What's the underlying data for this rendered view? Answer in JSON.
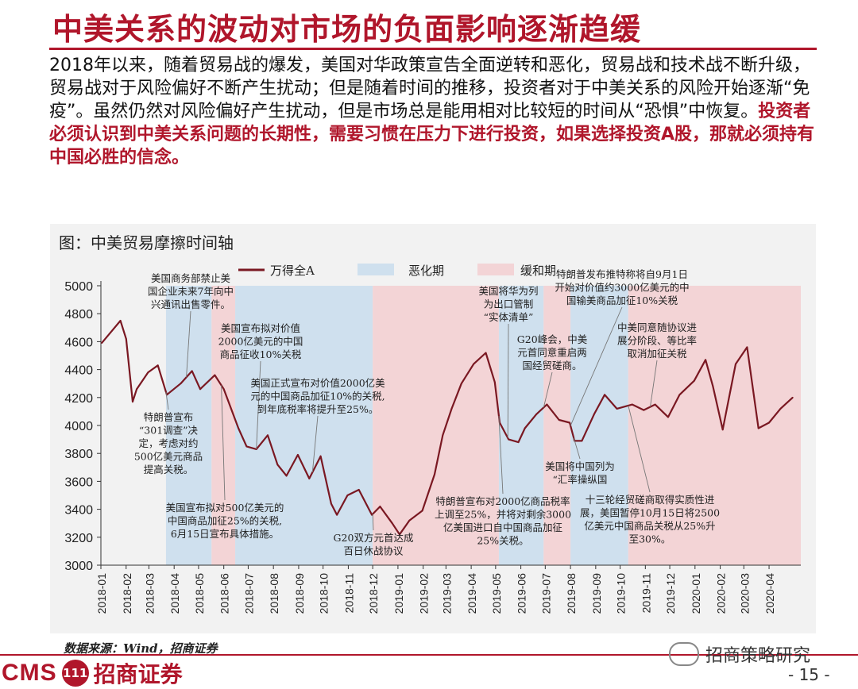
{
  "header": {
    "title": "中美关系的波动对市场的负面影响逐渐趋缓"
  },
  "body": {
    "lead": "2018年以来，随着贸易战的爆发，美国对华政策宣告全面逆转和恶化，贸易战和技术战不断升级，贸易战对于风险偏好不断产生扰动；但是随着时间的推移，投资者对于中美关系的风险开始逐渐“免疫”。虽然仍然对风险偏好产生扰动，但是市场总是能用相对比较短的时间从“恐惧”中恢复。",
    "highlight": "投资者必须认识到中美关系问题的长期性，需要习惯在压力下进行投资，如果选择投资A股，那就必须持有中国必胜的信念。"
  },
  "figure": {
    "title": "图：中美贸易摩擦时间轴"
  },
  "colors": {
    "line": "#7a1822",
    "worsen": "#cfe0ee",
    "ease": "#f3d4d6",
    "accent": "#b0162b"
  },
  "chart_data": {
    "type": "line",
    "title": "",
    "xlabel": "",
    "ylabel": "",
    "ylim": [
      3000,
      5000
    ],
    "yticks": [
      3000,
      3200,
      3400,
      3600,
      3800,
      4000,
      4200,
      4400,
      4600,
      4800,
      5000
    ],
    "xlim": [
      "2018-01-01",
      "2020-05-10"
    ],
    "categories": [
      "2018-01",
      "2018-02",
      "2018-03",
      "2018-04",
      "2018-05",
      "2018-06",
      "2018-07",
      "2018-08",
      "2018-09",
      "2018-10",
      "2018-11",
      "2018-12",
      "2019-01",
      "2019-02",
      "2019-03",
      "2019-04",
      "2019-05",
      "2019-06",
      "2019-07",
      "2019-08",
      "2019-09",
      "2019-10",
      "2019-11",
      "2019-12",
      "2020-01",
      "2020-02",
      "2020-03",
      "2020-04"
    ],
    "legend": {
      "placement": "top",
      "line": "万得全A",
      "worsen": "恶化期",
      "ease": "缓和期"
    },
    "series": [
      {
        "name": "万得全A",
        "x": [
          "2018-01-02",
          "2018-01-15",
          "2018-01-25",
          "2018-02-01",
          "2018-02-09",
          "2018-02-14",
          "2018-02-28",
          "2018-03-12",
          "2018-03-23",
          "2018-04-09",
          "2018-04-23",
          "2018-05-03",
          "2018-05-21",
          "2018-06-01",
          "2018-06-19",
          "2018-06-29",
          "2018-07-11",
          "2018-07-25",
          "2018-08-06",
          "2018-08-17",
          "2018-08-31",
          "2018-09-14",
          "2018-09-28",
          "2018-10-11",
          "2018-10-18",
          "2018-10-31",
          "2018-11-14",
          "2018-11-30",
          "2018-12-10",
          "2018-12-25",
          "2019-01-03",
          "2019-01-15",
          "2019-01-31",
          "2019-02-15",
          "2019-02-25",
          "2019-03-08",
          "2019-03-20",
          "2019-04-04",
          "2019-04-19",
          "2019-04-30",
          "2019-05-06",
          "2019-05-17",
          "2019-05-29",
          "2019-06-06",
          "2019-06-20",
          "2019-07-03",
          "2019-07-18",
          "2019-07-31",
          "2019-08-06",
          "2019-08-15",
          "2019-08-30",
          "2019-09-12",
          "2019-09-27",
          "2019-10-16",
          "2019-10-30",
          "2019-11-13",
          "2019-11-29",
          "2019-12-13",
          "2019-12-31",
          "2020-01-14",
          "2020-01-23",
          "2020-02-04",
          "2020-02-20",
          "2020-03-05",
          "2020-03-19",
          "2020-04-01",
          "2020-04-15",
          "2020-04-30"
        ],
        "values": [
          4590,
          4680,
          4750,
          4620,
          4170,
          4260,
          4380,
          4430,
          4220,
          4300,
          4390,
          4260,
          4360,
          4260,
          3980,
          3850,
          3830,
          3930,
          3720,
          3640,
          3790,
          3620,
          3780,
          3440,
          3360,
          3500,
          3540,
          3360,
          3420,
          3300,
          3220,
          3320,
          3390,
          3650,
          3930,
          4120,
          4300,
          4440,
          4520,
          4310,
          4020,
          3900,
          3880,
          3980,
          4080,
          4150,
          4040,
          4020,
          3890,
          3890,
          4080,
          4220,
          4120,
          4150,
          4110,
          4150,
          4060,
          4220,
          4320,
          4470,
          4280,
          3970,
          4440,
          4560,
          3980,
          4020,
          4120,
          4200
        ]
      }
    ],
    "worsen_periods": [
      [
        "2018-03-22",
        "2018-05-17"
      ],
      [
        "2018-06-15",
        "2018-12-01"
      ],
      [
        "2019-05-05",
        "2019-06-29"
      ],
      [
        "2019-08-01",
        "2019-10-11"
      ]
    ],
    "ease_periods": [
      [
        "2018-05-17",
        "2018-06-15"
      ],
      [
        "2018-12-01",
        "2019-05-05"
      ],
      [
        "2019-06-29",
        "2019-08-01"
      ],
      [
        "2019-10-11",
        "2020-05-10"
      ]
    ],
    "annotations": [
      {
        "text": [
          "美国商务部禁止美",
          "国企业未来7年向中",
          "兴通讯出售零件。"
        ],
        "date": "2018-04-16"
      },
      {
        "text": [
          "美国宣布拟对价值",
          "2000亿美元的中国",
          "商品征收10%关税"
        ],
        "date": "2018-07-11"
      },
      {
        "text": [
          "美国正式宣布对价值2000亿美",
          "元的中国商品加征10%的关税,",
          "到年底税率将提升至25%。"
        ],
        "date": "2018-09-18"
      },
      {
        "text": [
          "特朗普宣布",
          "“301调查”决",
          "定，考虑对约",
          "500亿美元商品",
          "提高关税。"
        ],
        "date": "2018-03-22"
      },
      {
        "text": [
          "美国宣布拟对500亿美元的",
          "中国商品加征25%的关税,",
          "6月15日宣布具体措施。"
        ],
        "date": "2018-05-29"
      },
      {
        "text": [
          "G20双方元首达成",
          "百日休战协议"
        ],
        "date": "2018-12-01"
      },
      {
        "text": [
          "特朗普宣布对2000亿商品税率",
          "上调至25%，并将对剩余3000",
          "亿美国进口自中国商品加征",
          "25%关税。"
        ],
        "date": "2019-05-05"
      },
      {
        "text": [
          "美国将华为列",
          "为出口管制",
          "“实体清单”"
        ],
        "date": "2019-05-16"
      },
      {
        "text": [
          "G20峰会，中美",
          "元首同意重启两",
          "国经贸磋商。"
        ],
        "date": "2019-06-29"
      },
      {
        "text": [
          "特朗普发布推特称将自9月1日",
          "开始对价值约3000亿美元的中",
          "国输美商品加征10%关税"
        ],
        "date": "2019-08-01"
      },
      {
        "text": [
          "美国将中国列为",
          "“汇率操纵国"
        ],
        "date": "2019-08-05"
      },
      {
        "text": [
          "中美同意随协议进",
          "展分阶段、等比率",
          "取消加征关税"
        ],
        "date": "2019-11-07"
      },
      {
        "text": [
          "十三轮经贸磋商取得实质性进",
          "展，美国暂停10月15日将2500",
          "亿美元中国商品关税从25%升",
          "至30%。"
        ],
        "date": "2019-10-11"
      }
    ]
  },
  "footer": {
    "source": "数据来源：Wind，招商证券",
    "logo_cms": "CMS",
    "logo_mark": "111",
    "logo_name": "招商证券",
    "wechat": "招商策略研究",
    "page": "- 15 -"
  }
}
